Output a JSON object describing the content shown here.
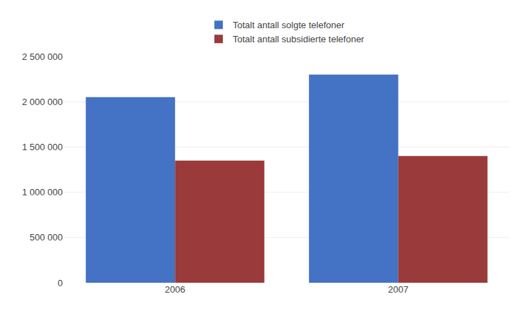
{
  "chart_data": {
    "type": "bar",
    "categories": [
      "2006",
      "2007"
    ],
    "series": [
      {
        "name": "Totalt antall solgte telefoner",
        "color": "#4472C4",
        "values": [
          2050000,
          2300000
        ]
      },
      {
        "name": "Totalt antall subsidierte telefoner",
        "color": "#9B3A3A",
        "values": [
          1350000,
          1400000
        ]
      }
    ],
    "ylim": [
      0,
      2500000
    ],
    "yticks": [
      0,
      {
        "value": 500000,
        "label": "500 000"
      },
      {
        "value": 1000000,
        "label": "1 000 000"
      },
      {
        "value": 1500000,
        "label": "1 500 000"
      },
      {
        "value": 2000000,
        "label": "2 000 000"
      },
      {
        "value": 2500000,
        "label": "2 500 000"
      }
    ],
    "grid": true,
    "legend": "top"
  }
}
